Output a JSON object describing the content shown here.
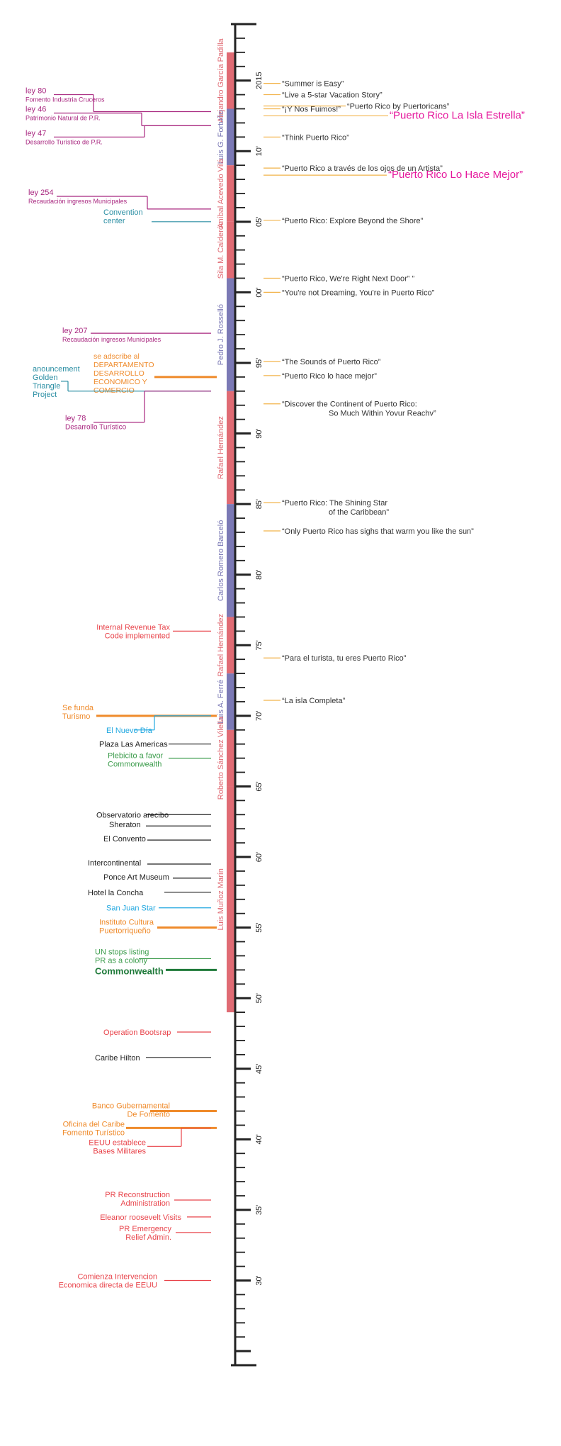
{
  "colors": {
    "axis": "#222222",
    "governor_red": "#e06b74",
    "governor_blue": "#7b79b5",
    "slogan_line": "#f2b34a",
    "slogan_text": "#333333",
    "slogan_pink": "#e5179c",
    "law": "#a8267f",
    "teal": "#2a8ea3",
    "orange": "#ef8a2a",
    "event_black": "#222222",
    "event_red": "#e8434a",
    "event_green": "#3a9b4a",
    "event_dark_green": "#1f7a3a",
    "event_blue": "#22a8e0"
  },
  "timeline": {
    "year_start": 1924,
    "year_end": 2019,
    "year_labels": [
      {
        "year": 2015,
        "label": "2015"
      },
      {
        "year": 2010,
        "label": "10'"
      },
      {
        "year": 2005,
        "label": "05'"
      },
      {
        "year": 2000,
        "label": "00'"
      },
      {
        "year": 1995,
        "label": "95'"
      },
      {
        "year": 1990,
        "label": "90'"
      },
      {
        "year": 1985,
        "label": "85'"
      },
      {
        "year": 1980,
        "label": "80'"
      },
      {
        "year": 1975,
        "label": "75'"
      },
      {
        "year": 1970,
        "label": "70'"
      },
      {
        "year": 1965,
        "label": "65'"
      },
      {
        "year": 1960,
        "label": "60'"
      },
      {
        "year": 1955,
        "label": "55'"
      },
      {
        "year": 1950,
        "label": "50'"
      },
      {
        "year": 1945,
        "label": "45'"
      },
      {
        "year": 1940,
        "label": "40'"
      },
      {
        "year": 1935,
        "label": "35'"
      },
      {
        "year": 1930,
        "label": "30'"
      }
    ]
  },
  "governors": [
    {
      "name": "Alejandro García Padilla",
      "start": 2013,
      "end": 2017,
      "tone": "red"
    },
    {
      "name": "Luis G. Fortuño",
      "start": 2009,
      "end": 2013,
      "tone": "blue"
    },
    {
      "name": "Aníbal Acevedo Vilá",
      "start": 2005,
      "end": 2009,
      "tone": "red"
    },
    {
      "name": "Sila M. Calderón",
      "start": 2001,
      "end": 2005,
      "tone": "red"
    },
    {
      "name": "Pedro J. Rosselló",
      "start": 1993,
      "end": 2001,
      "tone": "blue"
    },
    {
      "name": "Rafael Hernández",
      "start": 1985,
      "end": 1993,
      "tone": "red"
    },
    {
      "name": "Carlos Romero Barceló",
      "start": 1977,
      "end": 1985,
      "tone": "blue"
    },
    {
      "name": "Rafael Hernández",
      "start": 1973,
      "end": 1977,
      "tone": "red"
    },
    {
      "name": "Luis A. Ferré",
      "start": 1969,
      "end": 1973,
      "tone": "blue"
    },
    {
      "name": "Roberto Sánchez Vilella",
      "start": 1965,
      "end": 1969,
      "tone": "red"
    },
    {
      "name": "Luis Muñoz Marín",
      "start": 1949,
      "end": 1965,
      "tone": "red"
    }
  ],
  "slogans": [
    {
      "year": 2014.8,
      "lines": [
        "“Summer is Easy”"
      ],
      "style": "normal"
    },
    {
      "year": 2014.0,
      "lines": [
        "“Live a 5-star Vacation Story”"
      ],
      "style": "normal"
    },
    {
      "year": 2013.0,
      "lines": [
        "“¡Y Nos Fuimos!”"
      ],
      "style": "normal"
    },
    {
      "year": 2013.2,
      "lines": [
        "“Puerto Rico by Puertoricans”"
      ],
      "style": "normal",
      "dx": 92
    },
    {
      "year": 2012.5,
      "lines": [
        "“Puerto Rico La Isla Estrella”"
      ],
      "style": "pink",
      "dx": 152
    },
    {
      "year": 2011.0,
      "lines": [
        "“Think Puerto Rico”"
      ],
      "style": "normal"
    },
    {
      "year": 2008.8,
      "lines": [
        "“Puerto Rico a través de los ojos de un Artista”"
      ],
      "style": "normal"
    },
    {
      "year": 2008.3,
      "lines": [
        "“Puerto Rico Lo Hace Mejor”"
      ],
      "style": "pink",
      "dx": 150
    },
    {
      "year": 2005.1,
      "lines": [
        "“Puerto Rico: Explore Beyond the Shore”"
      ],
      "style": "normal"
    },
    {
      "year": 2001.0,
      "lines": [
        "“Puerto Rico, We're Right Next Door” ”"
      ],
      "style": "normal"
    },
    {
      "year": 2000.0,
      "lines": [
        "“You're not Dreaming, You're in Puerto Rico”"
      ],
      "style": "normal"
    },
    {
      "year": 1995.1,
      "lines": [
        "“The Sounds of Puerto Rico”"
      ],
      "style": "normal"
    },
    {
      "year": 1994.1,
      "lines": [
        "“Puerto Rico lo hace mejor”"
      ],
      "style": "normal"
    },
    {
      "year": 1992.1,
      "lines": [
        "“Discover the Continent of Puerto Rico:",
        "So Much Within Yovur Reachv”"
      ],
      "style": "normal"
    },
    {
      "year": 1985.1,
      "lines": [
        "“Puerto Rico: The Shining Star",
        "of the Caribbean”"
      ],
      "style": "normal"
    },
    {
      "year": 1983.1,
      "lines": [
        "“Only Puerto Rico has sighs that warm you like the sun”"
      ],
      "style": "normal"
    },
    {
      "year": 1974.1,
      "lines": [
        "“Para el turista, tu eres Puerto Rico”"
      ],
      "style": "normal"
    },
    {
      "year": 1971.1,
      "lines": [
        "“La isla Completa”"
      ],
      "style": "normal"
    }
  ],
  "events": [
    {
      "year": 2012.8,
      "label_year": 2014.0,
      "lines": [
        "ley 80",
        "Fomento Industria Cruceros"
      ],
      "color": "law",
      "weight": "thin",
      "line_from": 132,
      "lx": 36,
      "size": [
        11,
        9
      ]
    },
    {
      "year": 2011.8,
      "label_year": 2012.7,
      "lines": [
        "ley 46",
        "Patrimonio Natural de P.R."
      ],
      "color": "law",
      "weight": "thin",
      "line_from": 200,
      "lx": 36,
      "size": [
        11,
        9
      ]
    },
    {
      "year": 2011.8,
      "label_year": 2011.0,
      "lines": [
        "ley 47",
        "Desarrollo Turístico de P.R."
      ],
      "color": "law",
      "weight": "thin",
      "line_from": 204,
      "lx": 36,
      "size": [
        11,
        9
      ]
    },
    {
      "year": 2005.9,
      "label_year": 2006.8,
      "lines": [
        "ley 254",
        "Recaudación ingresos Municipales"
      ],
      "color": "law",
      "weight": "thin",
      "line_from": 208,
      "lx": 40,
      "size": [
        11,
        9
      ]
    },
    {
      "year": 2005.0,
      "label_year": 2005.4,
      "lines": [
        "Convention",
        "center"
      ],
      "color": "teal",
      "weight": "thin",
      "line_from": 214,
      "lx": 146,
      "size": [
        11,
        11
      ]
    },
    {
      "year": 1997.1,
      "label_year": 1997.0,
      "lines": [
        "ley 207",
        "Recaudación ingresos Municipales"
      ],
      "color": "law",
      "weight": "thin",
      "line_from": 128,
      "lx": 88,
      "size": [
        11,
        9
      ]
    },
    {
      "year": 1994.0,
      "label_year": 1994.3,
      "lines": [
        "se adscribe al",
        "DEPARTAMENTO",
        "DESARROLLO",
        "ECONOMICO  Y",
        "COMERCIO"
      ],
      "color": "orange",
      "weight": "thick",
      "line_from": 218,
      "lx": 132,
      "size": [
        10.5,
        10.5
      ]
    },
    {
      "year": 1993.0,
      "label_year": 1993.7,
      "lines": [
        "anouncement",
        "Golden",
        "Triangle",
        "Project"
      ],
      "color": "teal",
      "weight": "thin",
      "line_from": 96,
      "lx": 46,
      "size": [
        11,
        11
      ]
    },
    {
      "year": 1993.0,
      "label_year": 1990.8,
      "lines": [
        "ley 78",
        "Desarrollo Turístico"
      ],
      "color": "law",
      "weight": "thin",
      "line_from": 204,
      "lx": 92,
      "size": [
        11,
        10
      ]
    },
    {
      "year": 1976.0,
      "label_year": 1976.0,
      "lines": [
        "Internal Revenue Tax",
        "Code implemented"
      ],
      "color": "event_red",
      "weight": "thin",
      "line_from": 244,
      "lx": 240,
      "anchor": "end",
      "size": [
        11,
        11
      ]
    },
    {
      "year": 1970.0,
      "label_year": 1970.3,
      "lines": [
        "Se funda",
        "Turismo"
      ],
      "color": "orange",
      "weight": "thick",
      "line_from": 136,
      "lx": 88,
      "size": [
        11,
        11
      ]
    },
    {
      "year": 1970.0,
      "label_year": 1969.0,
      "lines": [
        "El Nuevo Día"
      ],
      "color": "event_blue",
      "weight": "thin",
      "line_from": 218,
      "lx": 150,
      "size": [
        11,
        11
      ]
    },
    {
      "year": 1968.0,
      "label_year": 1968.0,
      "lines": [
        "Plaza Las Americas"
      ],
      "color": "event_black",
      "weight": "thin",
      "line_from": 238,
      "lx": 140,
      "size": [
        11,
        11
      ]
    },
    {
      "year": 1967.0,
      "label_year": 1966.9,
      "lines": [
        "Plebicito a favor",
        "Commonwealth"
      ],
      "color": "event_green",
      "weight": "thin",
      "line_from": 238,
      "lx": 152,
      "size": [
        11,
        11
      ]
    },
    {
      "year": 1963.0,
      "label_year": 1963.0,
      "lines": [
        "Observatorio arecibo"
      ],
      "color": "event_black",
      "weight": "thin",
      "line_from": 206,
      "lx": 136,
      "size": [
        11,
        11
      ]
    },
    {
      "year": 1962.2,
      "label_year": 1962.3,
      "lines": [
        "Sheraton"
      ],
      "color": "event_black",
      "weight": "thin",
      "line_from": 206,
      "lx": 154,
      "size": [
        11,
        11
      ]
    },
    {
      "year": 1961.2,
      "label_year": 1961.3,
      "lines": [
        "El Convento"
      ],
      "color": "event_black",
      "weight": "thin",
      "line_from": 208,
      "lx": 146,
      "size": [
        11,
        11
      ]
    },
    {
      "year": 1959.5,
      "label_year": 1959.6,
      "lines": [
        "Intercontinental"
      ],
      "color": "event_black",
      "weight": "thin",
      "line_from": 208,
      "lx": 124,
      "size": [
        11,
        11
      ]
    },
    {
      "year": 1958.5,
      "label_year": 1958.6,
      "lines": [
        "Ponce Art Museum"
      ],
      "color": "event_black",
      "weight": "thin",
      "line_from": 244,
      "lx": 146,
      "size": [
        11,
        11
      ]
    },
    {
      "year": 1957.5,
      "label_year": 1957.5,
      "lines": [
        "Hotel la Concha"
      ],
      "color": "event_black",
      "weight": "thin",
      "line_from": 232,
      "lx": 124,
      "size": [
        11,
        11
      ]
    },
    {
      "year": 1956.4,
      "label_year": 1956.4,
      "lines": [
        "San Juan Star"
      ],
      "color": "event_blue",
      "weight": "thin",
      "line_from": 224,
      "lx": 150,
      "size": [
        11,
        11
      ]
    },
    {
      "year": 1955.0,
      "label_year": 1955.1,
      "lines": [
        "Instituto Cultura",
        "Puertorriqueño"
      ],
      "color": "orange",
      "weight": "thick",
      "line_from": 222,
      "lx": 140,
      "size": [
        11,
        11
      ]
    },
    {
      "year": 1952.8,
      "label_year": 1953.0,
      "lines": [
        "UN stops listing",
        "PR as a colony"
      ],
      "color": "event_green",
      "weight": "thin",
      "line_from": 196,
      "lx": 134,
      "size": [
        11,
        11
      ]
    },
    {
      "year": 1952.0,
      "label_year": 1951.9,
      "lines": [
        "Commonwealth"
      ],
      "color": "event_dark_green",
      "weight": "thick",
      "line_from": 234,
      "lx": 134,
      "size": [
        13,
        13
      ],
      "bold": true
    },
    {
      "year": 1947.6,
      "label_year": 1947.6,
      "lines": [
        "Operation Bootsrap"
      ],
      "color": "event_red",
      "weight": "thin",
      "line_from": 250,
      "lx": 146,
      "size": [
        11,
        11
      ]
    },
    {
      "year": 1945.8,
      "label_year": 1945.8,
      "lines": [
        "Caribe Hilton"
      ],
      "color": "event_black",
      "weight": "thin",
      "line_from": 206,
      "lx": 134,
      "size": [
        11,
        11
      ]
    },
    {
      "year": 1942.0,
      "label_year": 1942.1,
      "lines": [
        "Banco Gubernamental",
        "De Fomento"
      ],
      "color": "orange",
      "weight": "thick",
      "line_from": 212,
      "lx": 240,
      "anchor": "end",
      "size": [
        11,
        11
      ]
    },
    {
      "year": 1940.8,
      "label_year": 1940.8,
      "lines": [
        "Oficina del Caribe",
        "Fomento Turístico"
      ],
      "color": "orange",
      "weight": "thick",
      "line_from": 178,
      "lx": 176,
      "anchor": "end",
      "size": [
        11,
        11
      ]
    },
    {
      "year": 1940.8,
      "label_year": 1939.5,
      "lines": [
        "EEUU establece",
        "Bases Militares"
      ],
      "color": "event_red",
      "weight": "thin",
      "line_from": 256,
      "lx": 206,
      "anchor": "end",
      "size": [
        11,
        11
      ]
    },
    {
      "year": 1935.7,
      "label_year": 1935.8,
      "lines": [
        "PR Reconstruction",
        "Administration"
      ],
      "color": "event_red",
      "weight": "thin",
      "line_from": 246,
      "lx": 240,
      "anchor": "end",
      "size": [
        11,
        11
      ]
    },
    {
      "year": 1934.5,
      "label_year": 1934.5,
      "lines": [
        "Eleanor roosevelt Visits"
      ],
      "color": "event_red",
      "weight": "thin",
      "line_from": 264,
      "lx": 256,
      "anchor": "end",
      "size": [
        11,
        11
      ]
    },
    {
      "year": 1933.4,
      "label_year": 1933.4,
      "lines": [
        "PR Emergency",
        "Relief Admin."
      ],
      "color": "event_red",
      "weight": "thin",
      "line_from": 248,
      "lx": 242,
      "anchor": "end",
      "size": [
        11,
        11
      ]
    },
    {
      "year": 1930.0,
      "label_year": 1930.0,
      "lines": [
        "Comienza Intervencion",
        "Economica directa de EEUU"
      ],
      "color": "event_red",
      "weight": "thin",
      "line_from": 232,
      "lx": 222,
      "anchor": "end",
      "size": [
        11,
        11
      ]
    }
  ]
}
